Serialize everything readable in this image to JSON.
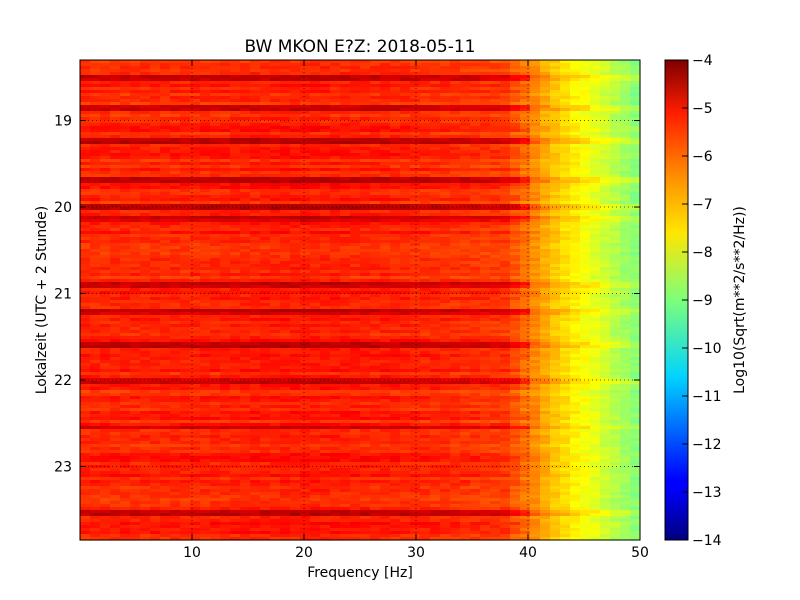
{
  "chart_data": {
    "type": "heatmap",
    "title": "BW MKON E?Z: 2018-05-11",
    "xlabel": "Frequency [Hz]",
    "ylabel": "Lokalzeit (UTC + 2 Stunde)",
    "xlim": [
      0,
      50
    ],
    "ylim": [
      18.3,
      23.85
    ],
    "y_inverted": true,
    "grid": true,
    "x_ticks": [
      10,
      20,
      30,
      40,
      50
    ],
    "y_ticks": [
      19,
      20,
      21,
      22,
      23
    ],
    "colormap": "jet",
    "colorbar": {
      "label": "Log10(Sqrt(m**2/s**2/Hz))",
      "range": [
        -14,
        -4
      ],
      "ticks": [
        -4,
        -5,
        -6,
        -7,
        -8,
        -9,
        -10,
        -11,
        -12,
        -13,
        -14
      ]
    },
    "spectral_profile": {
      "frequency": [
        0,
        5,
        10,
        20,
        30,
        38,
        40,
        42,
        44,
        46,
        48,
        50
      ],
      "log_amplitude": [
        -5.6,
        -5.6,
        -5.6,
        -5.5,
        -5.6,
        -5.8,
        -6.4,
        -7.1,
        -7.6,
        -8.0,
        -8.5,
        -9.0
      ]
    },
    "dark_bands_hour": [
      18.5,
      18.85,
      19.25,
      19.7,
      20.0,
      20.15,
      20.9,
      21.2,
      21.6,
      22.0,
      22.55,
      23.55
    ]
  }
}
